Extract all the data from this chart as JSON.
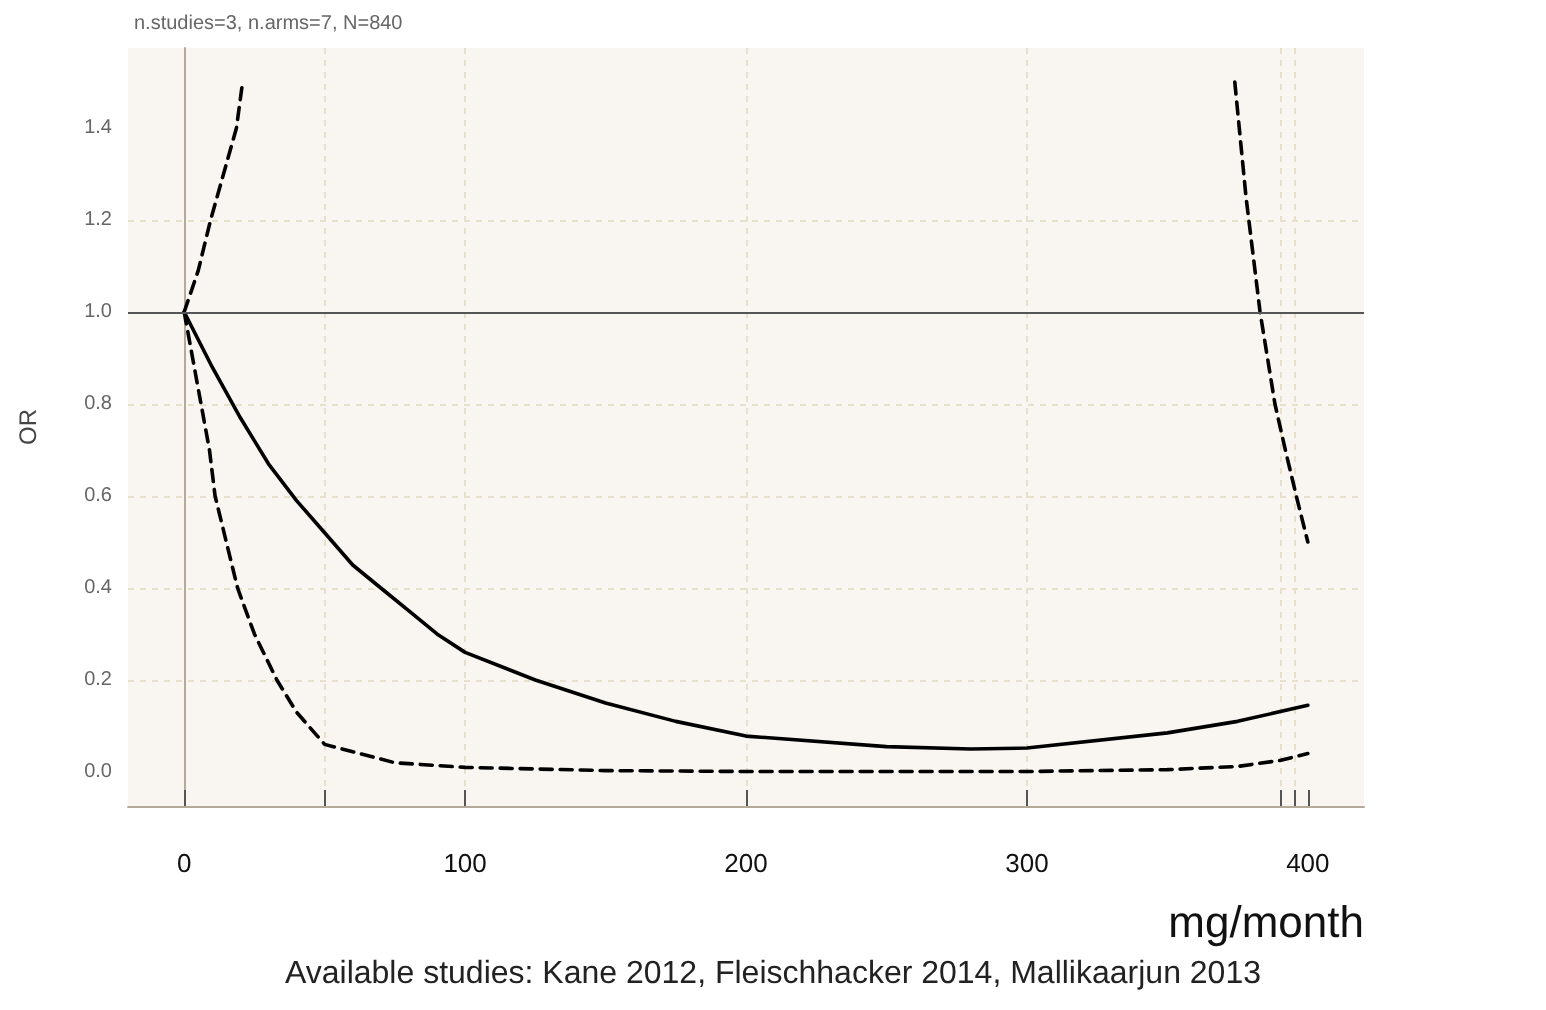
{
  "chart_data": {
    "type": "line",
    "title": "n.studies=3, n.arms=7, N=840",
    "xlabel": "mg/month",
    "ylabel": "OR",
    "annotations": [
      "Available studies: Kane 2012, Fleischhacker 2014, Mallikaarjun 2013"
    ],
    "xlim": [
      -20,
      420
    ],
    "xticks": [
      0,
      {
        "value": 50,
        "label": null
      },
      100,
      200,
      300,
      {
        "value": 390,
        "label": null
      },
      {
        "value": 395,
        "label": null
      },
      400
    ],
    "ylim": [
      -0.074,
      1.574
    ],
    "yticks": [
      {
        "value": 0,
        "label": "0.0"
      },
      {
        "value": 0.2,
        "label": "0.2"
      },
      {
        "value": 0.4,
        "label": "0.4"
      },
      {
        "value": 0.6,
        "label": "0.6"
      },
      {
        "value": 0.8,
        "label": "0.8"
      },
      {
        "value": 1,
        "label": "1.0"
      },
      {
        "value": 1.2,
        "label": "1.2"
      },
      {
        "value": 1.4,
        "label": "1.4"
      }
    ],
    "grid": true,
    "marker": "none",
    "ref_lines": [
      {
        "axis": "y",
        "value": 1,
        "label": null,
        "color": "#555555",
        "line_style": "solid"
      }
    ],
    "series": [
      {
        "color": "#000000",
        "line_style": "solid",
        "x": [
          0,
          10,
          20,
          30,
          40,
          50,
          60,
          70,
          80,
          90,
          100,
          125,
          150,
          175,
          200,
          250,
          280,
          300,
          350,
          375,
          400
        ],
        "values": [
          1.0,
          0.88,
          0.77,
          0.67,
          0.59,
          0.52,
          0.45,
          0.4,
          0.35,
          0.3,
          0.26,
          0.2,
          0.15,
          0.11,
          0.078,
          0.055,
          0.05,
          0.052,
          0.085,
          0.11,
          0.145
        ]
      },
      {
        "color": "#000000",
        "line_style": "dashed",
        "x": [
          0,
          3,
          6,
          9,
          11,
          15,
          19,
          25,
          33,
          40,
          50,
          75,
          100,
          150,
          200,
          300,
          350,
          375,
          390,
          400
        ],
        "values": [
          1.0,
          0.9,
          0.8,
          0.7,
          0.6,
          0.5,
          0.4,
          0.3,
          0.2,
          0.13,
          0.06,
          0.02,
          0.01,
          0.003,
          0.001,
          0.001,
          0.005,
          0.012,
          0.025,
          0.04
        ]
      },
      {
        "color": "#000000",
        "line_style": "dashed",
        "x": [
          0,
          5,
          9.4,
          14,
          18.6,
          20.8,
          200,
          374,
          378,
          383,
          388.3,
          392,
          395.9,
          400
        ],
        "values": [
          1.0,
          1.09,
          1.2,
          1.3,
          1.4,
          1.5,
          null,
          1.5,
          1.25,
          1.0,
          0.8,
          0.7,
          0.6,
          0.5
        ]
      }
    ]
  }
}
